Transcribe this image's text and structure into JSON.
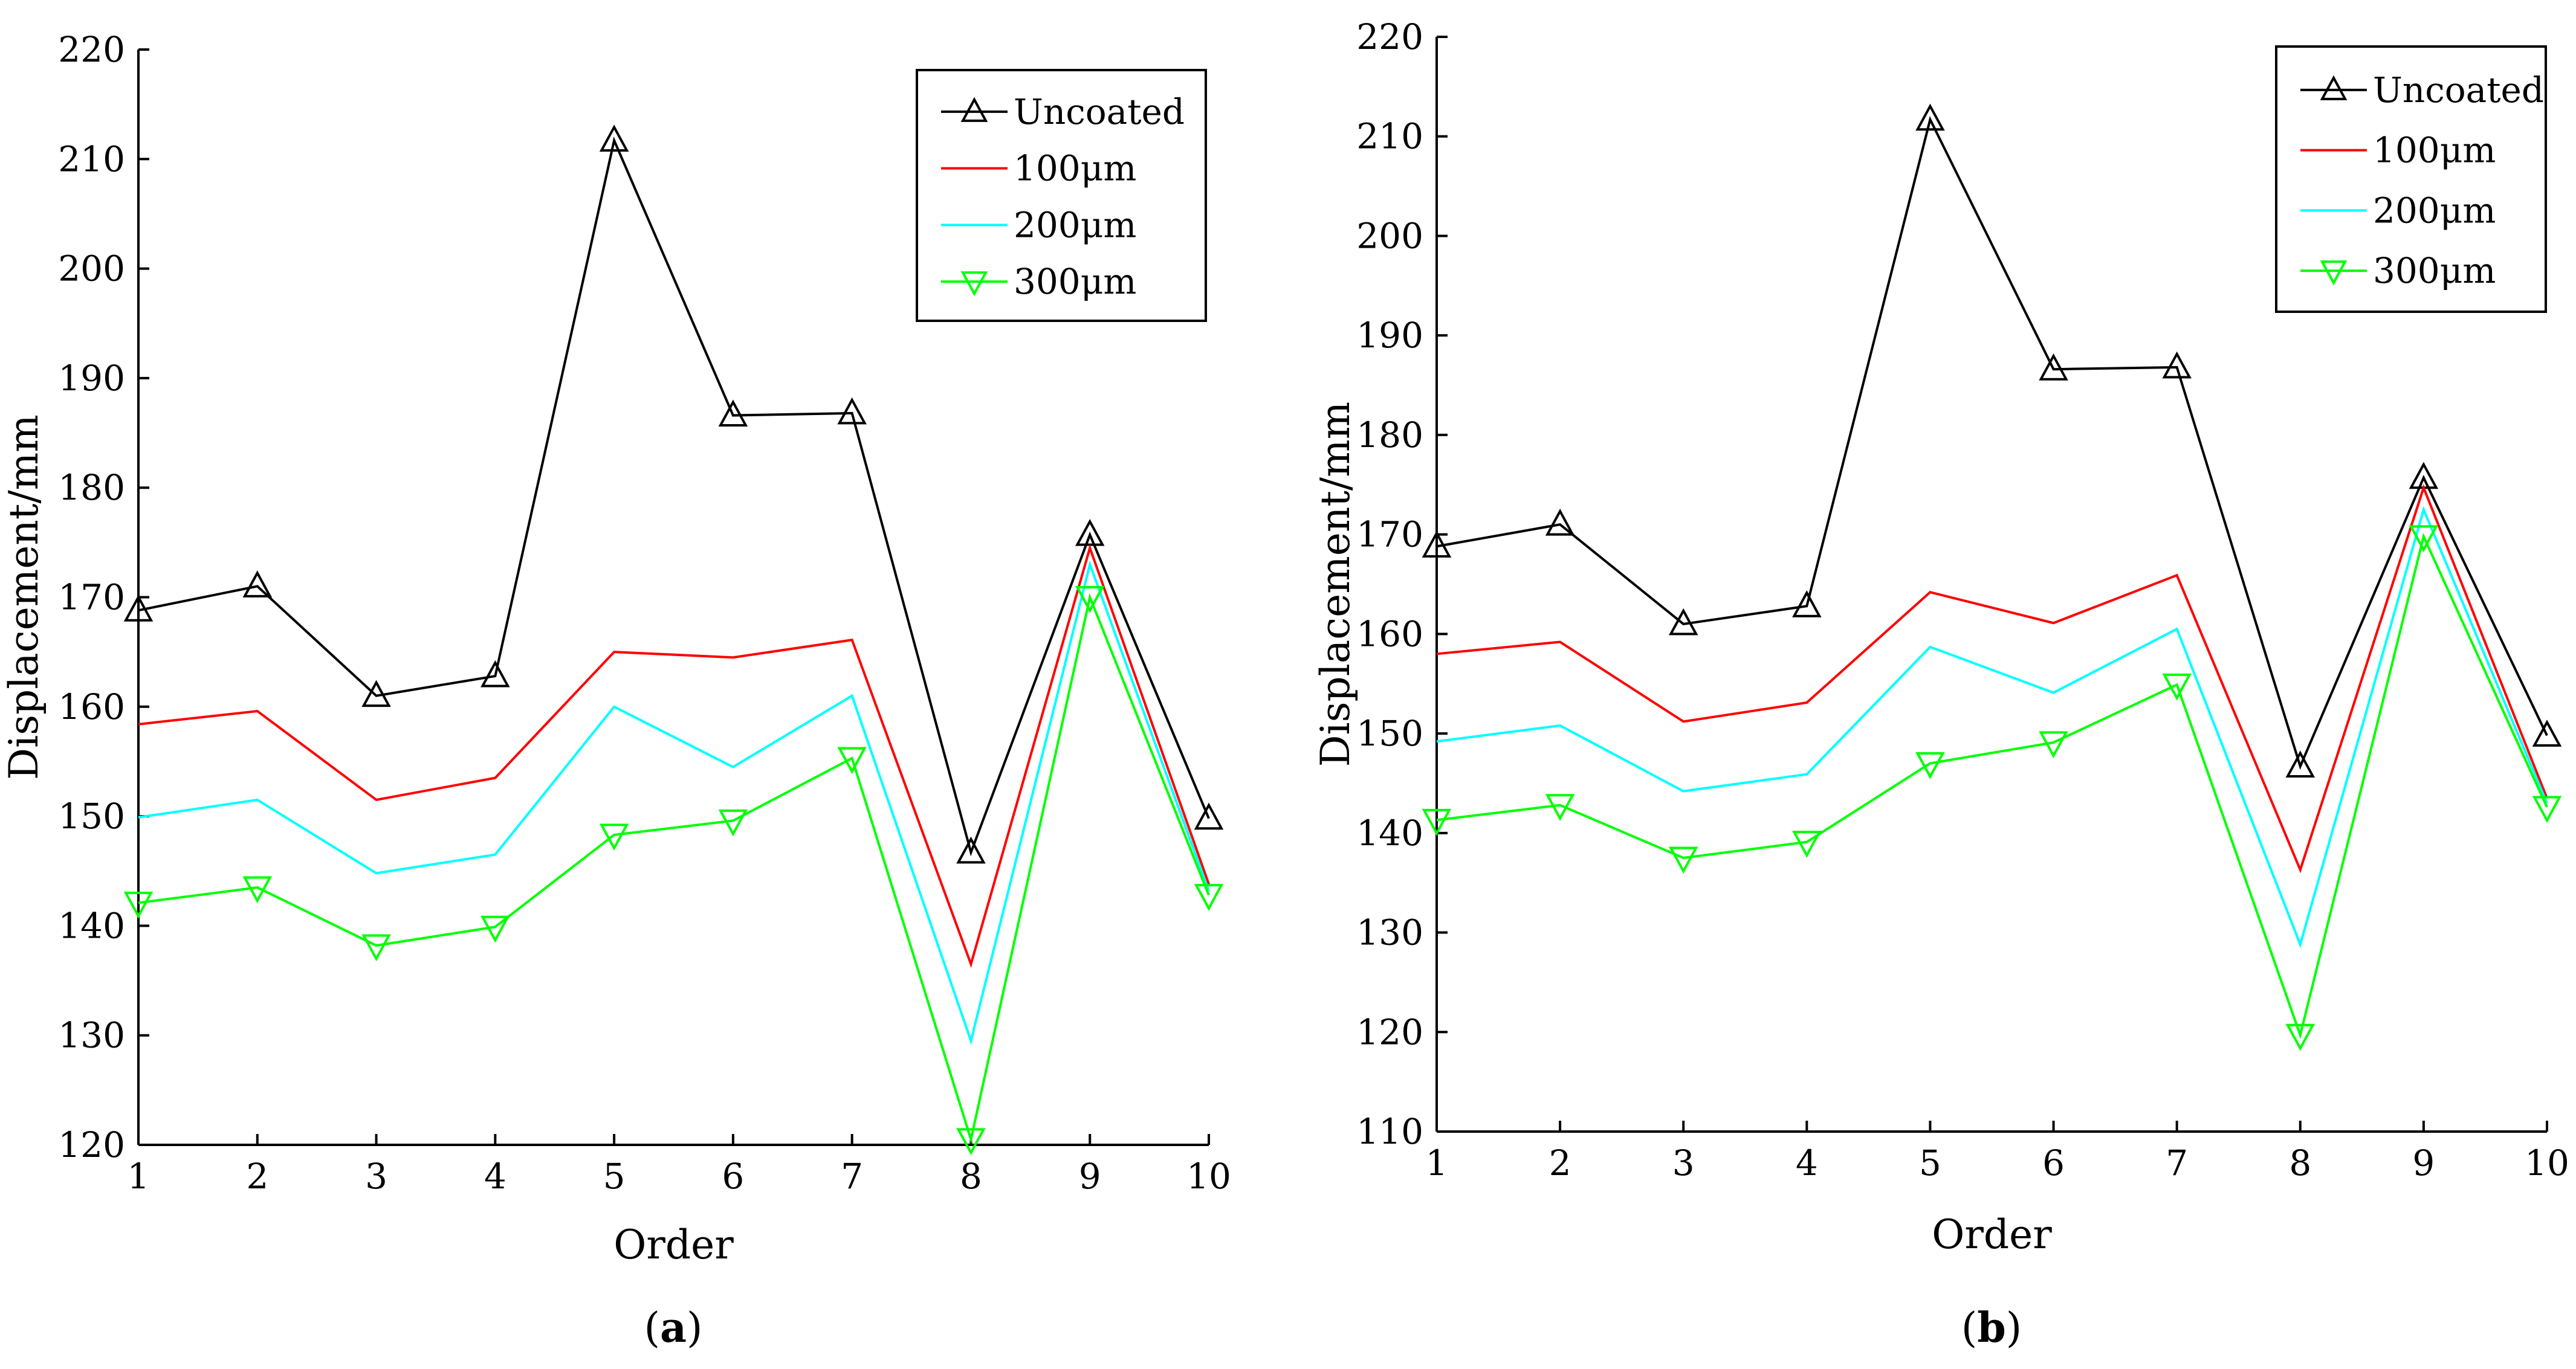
{
  "colors": {
    "uncoated": "#000000",
    "100um": "#ff0000",
    "200um": "#00ffff",
    "300um": "#00ff00"
  },
  "chart_data": [
    {
      "type": "line",
      "panel_label": "a",
      "xlabel": "Order",
      "ylabel": "Displacement/mm",
      "x": [
        1,
        2,
        3,
        4,
        5,
        6,
        7,
        8,
        9,
        10
      ],
      "xticks": [
        "1",
        "2",
        "3",
        "4",
        "5",
        "6",
        "7",
        "8",
        "9",
        "10"
      ],
      "xlim": [
        1,
        10
      ],
      "ylim": [
        120,
        220
      ],
      "yticks": [
        "120",
        "130",
        "140",
        "150",
        "160",
        "170",
        "180",
        "190",
        "200",
        "210",
        "220"
      ],
      "grid": false,
      "legend_position": "top-right",
      "series": [
        {
          "name": "Uncoated",
          "color": "#000000",
          "marker": "triangle-up",
          "values": [
            168.8,
            171.0,
            161.0,
            162.8,
            211.7,
            186.6,
            186.8,
            146.7,
            175.7,
            149.8
          ]
        },
        {
          "name": "100μm",
          "color": "#ff0000",
          "marker": "none",
          "values": [
            158.4,
            159.6,
            151.5,
            153.5,
            165.0,
            164.5,
            166.1,
            136.5,
            174.5,
            143.8
          ]
        },
        {
          "name": "200μm",
          "color": "#00ffff",
          "marker": "none",
          "values": [
            149.9,
            151.5,
            144.8,
            146.5,
            160.0,
            154.5,
            161.0,
            129.5,
            173.0,
            143.2
          ]
        },
        {
          "name": "300μm",
          "color": "#00ff00",
          "marker": "triangle-down",
          "values": [
            142.1,
            143.5,
            138.2,
            139.9,
            148.3,
            149.6,
            155.3,
            120.5,
            170.0,
            142.8
          ]
        }
      ]
    },
    {
      "type": "line",
      "panel_label": "b",
      "xlabel": "Order",
      "ylabel": "Displacement/mm",
      "x": [
        1,
        2,
        3,
        4,
        5,
        6,
        7,
        8,
        9,
        10
      ],
      "xticks": [
        "1",
        "2",
        "3",
        "4",
        "5",
        "6",
        "7",
        "8",
        "9",
        "10"
      ],
      "xlim": [
        1,
        10
      ],
      "ylim": [
        110,
        220
      ],
      "yticks": [
        "110",
        "120",
        "130",
        "140",
        "150",
        "160",
        "170",
        "180",
        "190",
        "200",
        "210",
        "220"
      ],
      "grid": false,
      "legend_position": "top-right",
      "series": [
        {
          "name": "Uncoated",
          "color": "#000000",
          "marker": "triangle-up",
          "values": [
            168.8,
            171.0,
            161.0,
            162.8,
            211.7,
            186.6,
            186.8,
            146.7,
            175.7,
            149.8
          ]
        },
        {
          "name": "100μm",
          "color": "#ff0000",
          "marker": "none",
          "values": [
            158.0,
            159.2,
            151.2,
            153.1,
            164.2,
            161.1,
            165.9,
            136.3,
            174.7,
            143.5
          ]
        },
        {
          "name": "200μm",
          "color": "#00ffff",
          "marker": "none",
          "values": [
            149.2,
            150.8,
            144.2,
            145.9,
            158.7,
            154.1,
            160.5,
            128.8,
            172.5,
            143.0
          ]
        },
        {
          "name": "300μm",
          "color": "#00ff00",
          "marker": "triangle-down",
          "values": [
            141.3,
            142.8,
            137.5,
            139.1,
            147.0,
            149.1,
            154.9,
            119.7,
            169.8,
            142.6
          ]
        }
      ]
    }
  ]
}
